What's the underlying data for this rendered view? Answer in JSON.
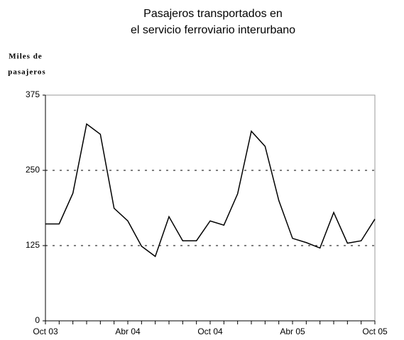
{
  "chart_data": {
    "type": "line",
    "title": [
      "Pasajeros  transportados en",
      "el servicio  ferroviario interurbano"
    ],
    "y_label": [
      "Miles de",
      "pasajeros"
    ],
    "categories": [
      "Oct 03",
      null,
      null,
      null,
      null,
      null,
      "Abr 04",
      null,
      null,
      null,
      null,
      null,
      "Oct 04",
      null,
      null,
      null,
      null,
      null,
      "Abr 05",
      null,
      null,
      null,
      null,
      null,
      "Oct 05"
    ],
    "series": [
      {
        "name": "Pasajeros",
        "color": "#000000",
        "values": [
          161,
          161,
          212,
          327,
          310,
          187,
          166,
          124,
          107,
          173,
          133,
          133,
          166,
          159,
          211,
          315,
          290,
          200,
          137,
          130,
          121,
          180,
          129,
          133,
          169
        ]
      }
    ],
    "ylim": [
      0,
      375
    ],
    "yticks": [
      0,
      125,
      250,
      375
    ],
    "grid": true
  }
}
